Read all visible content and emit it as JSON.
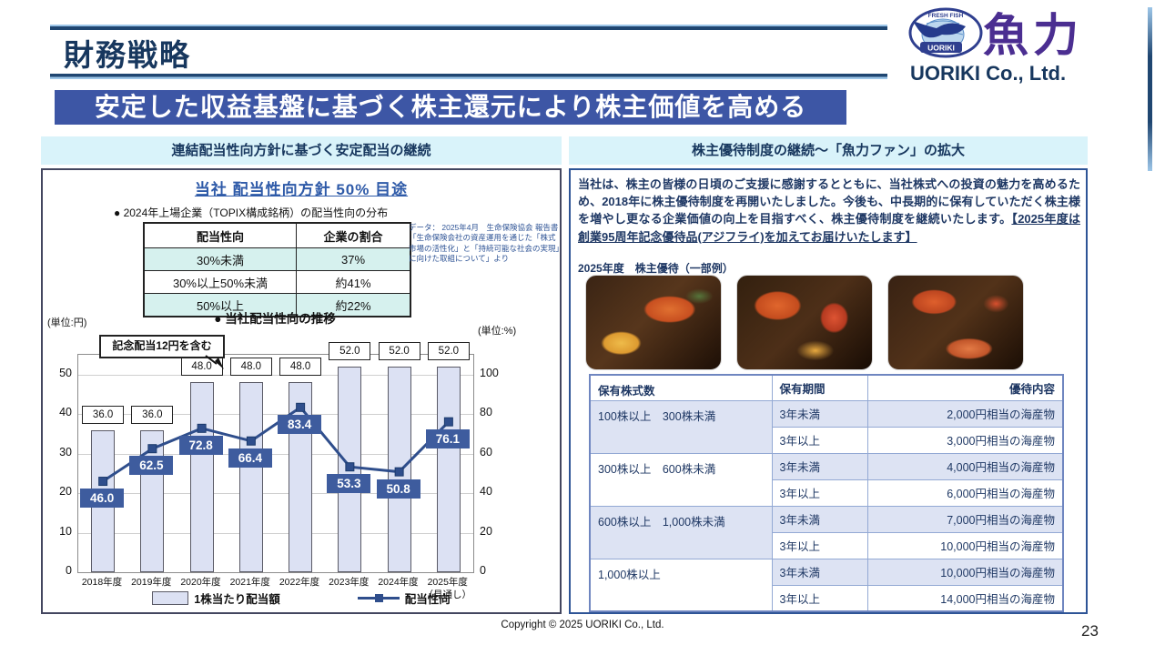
{
  "header": {
    "title": "財務戦略"
  },
  "logo": {
    "kanji": "魚力",
    "company": "UORIKI Co., Ltd.",
    "emblem_top": "FRESH FISH",
    "emblem_bottom": "UORIKI"
  },
  "main_title": "安定した収益基盤に基づく株主還元により株主価値を高める",
  "left_panel": {
    "header": "連結配当性向方針に基づく安定配当の継続",
    "policy_title": "当社 配当性向方針 50% 目途",
    "dist_bullet": "● 2024年上場企業（TOPIX構成銘柄）の配当性向の分布",
    "dist_table": {
      "headers": [
        "配当性向",
        "企業の割合"
      ],
      "rows": [
        [
          "30%未満",
          "37%"
        ],
        [
          "30%以上50%未満",
          "約41%"
        ],
        [
          "50%以上",
          "約22%"
        ]
      ]
    },
    "data_note": "データ： 2025年4月　生命保険協会 報告書「生命保険会社の資産運用を通じた「株式市場の活性化」と「持続可能な社会の実現」に向けた取組について」より"
  },
  "chart_data": {
    "type": "bar",
    "title": "● 当社配当性向の推移",
    "unit_left": "(単位:円)",
    "unit_right": "(単位:%)",
    "categories": [
      "2018年度",
      "2019年度",
      "2020年度",
      "2021年度",
      "2022年度",
      "2023年度",
      "2024年度",
      "2025年度\n（見通し）"
    ],
    "series": [
      {
        "name": "1株当たり配当額",
        "type": "bar",
        "axis": "left",
        "values": [
          36.0,
          36.0,
          48.0,
          48.0,
          48.0,
          52.0,
          52.0,
          52.0
        ]
      },
      {
        "name": "配当性向",
        "type": "line",
        "axis": "right",
        "values": [
          46.0,
          62.5,
          72.8,
          66.4,
          83.4,
          53.3,
          50.8,
          76.1
        ]
      }
    ],
    "left_axis": {
      "ticks": [
        0,
        10,
        20,
        30,
        40,
        50
      ],
      "max": 55
    },
    "right_axis": {
      "ticks": [
        0,
        20,
        40,
        60,
        80,
        100
      ],
      "max": 110
    },
    "annotation": "記念配当12円を含む",
    "annotation_target_index": 2,
    "legend_position": "bottom",
    "grid": true
  },
  "right_panel": {
    "header": "株主優待制度の継続～「魚力ファン」の拡大",
    "paragraph_main": "当社は、株主の皆様の日頃のご支援に感謝するとともに、当社株式への投資の魅力を高めるため、2018年に株主優待制度を再開いたしました。今後も、中長期的に保有していただく株主様を増やし更なる企業価値の向上を目指すべく、株主優待制度を継続いたします。",
    "paragraph_underlined": "【2025年度は創業95周年記念優待品(アジフライ)を加えてお届けいたします】",
    "photos_label": "2025年度　株主優待（一部例）",
    "photos": [
      "mentaiko-citrus-platter",
      "crab-ikura-parfait-set",
      "crab-shrimp-assortment"
    ],
    "benefit_table": {
      "headers": [
        "保有株式数",
        "保有期間",
        "優待内容"
      ],
      "groups": [
        {
          "shares": "100株以上　300株未満",
          "rows": [
            [
              "3年未満",
              "2,000円相当の海産物"
            ],
            [
              "3年以上",
              "3,000円相当の海産物"
            ]
          ]
        },
        {
          "shares": "300株以上　600株未満",
          "rows": [
            [
              "3年未満",
              "4,000円相当の海産物"
            ],
            [
              "3年以上",
              "6,000円相当の海産物"
            ]
          ]
        },
        {
          "shares": "600株以上　1,000株未満",
          "rows": [
            [
              "3年未満",
              "7,000円相当の海産物"
            ],
            [
              "3年以上",
              "10,000円相当の海産物"
            ]
          ]
        },
        {
          "shares": "1,000株以上",
          "rows": [
            [
              "3年未満",
              "10,000円相当の海産物"
            ],
            [
              "3年以上",
              "14,000円相当の海産物"
            ]
          ]
        }
      ]
    }
  },
  "footer": {
    "copyright": "Copyright © 2025 UORIKI Co., Ltd.",
    "page_number": "23"
  },
  "colors": {
    "title_bar": "#3d56a5",
    "header_text": "#17375e",
    "panel_header_bg": "#d9f3fa",
    "dist_shade": "#d6f1ee",
    "bar_fill": "#dce1f3",
    "line": "#2f4e8c",
    "value_box": "#3e5c9e",
    "benefit_shade": "#dde3f3",
    "logo_purple": "#4b2e91"
  }
}
